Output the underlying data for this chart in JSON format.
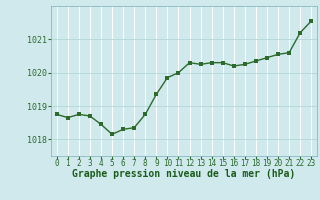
{
  "x": [
    0,
    1,
    2,
    3,
    4,
    5,
    6,
    7,
    8,
    9,
    10,
    11,
    12,
    13,
    14,
    15,
    16,
    17,
    18,
    19,
    20,
    21,
    22,
    23
  ],
  "y": [
    1018.75,
    1018.65,
    1018.75,
    1018.7,
    1018.45,
    1018.15,
    1018.3,
    1018.35,
    1018.75,
    1019.35,
    1019.85,
    1020.0,
    1020.3,
    1020.25,
    1020.3,
    1020.3,
    1020.2,
    1020.25,
    1020.35,
    1020.45,
    1020.55,
    1020.6,
    1021.2,
    1021.55
  ],
  "line_color": "#2d6b2d",
  "marker_color": "#2d6b2d",
  "bg_color": "#cfe9ed",
  "grid_color": "#b0d4d8",
  "xlabel": "Graphe pression niveau de la mer (hPa)",
  "xlabel_color": "#1a5c1a",
  "tick_color": "#2d6b2d",
  "ylim": [
    1017.5,
    1022.0
  ],
  "yticks": [
    1018,
    1019,
    1020,
    1021
  ],
  "xtick_labels": [
    "0",
    "1",
    "2",
    "3",
    "4",
    "5",
    "6",
    "7",
    "8",
    "9",
    "10",
    "11",
    "12",
    "13",
    "14",
    "15",
    "16",
    "17",
    "18",
    "19",
    "20",
    "21",
    "22",
    "23"
  ],
  "marker_size": 2.5,
  "line_width": 1.0,
  "xlabel_fontsize": 7.0,
  "tick_fontsize": 5.5,
  "xlabel_fontweight": "bold"
}
